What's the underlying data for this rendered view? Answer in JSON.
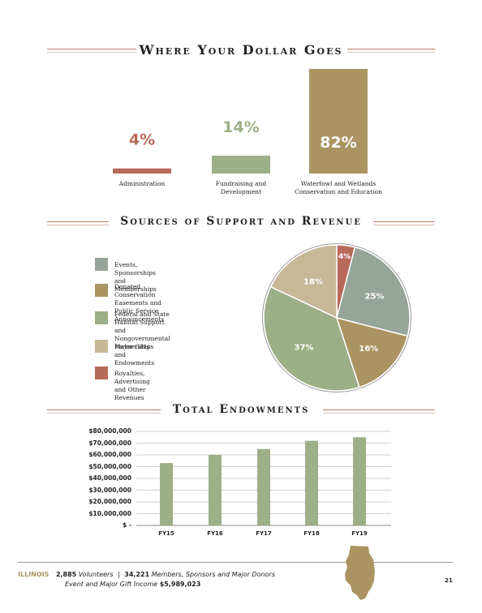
{
  "dollar_section": {
    "title": "Where Your Dollar Goes"
  },
  "support_section": {
    "title": "Sources of Support and Revenue"
  },
  "endowment_section": {
    "title": "Total Endowments"
  },
  "chart_data": [
    {
      "type": "bar",
      "title": "Where Your Dollar Goes",
      "categories": [
        "Administration",
        "Fundraising and Development",
        "Waterfowl and Wetlands Conservation and Education"
      ],
      "category_lines": [
        [
          "Administration"
        ],
        [
          "Fundraising and",
          "Development"
        ],
        [
          "Waterfowl and Wetlands",
          "Conservation and Education"
        ]
      ],
      "values": [
        4,
        14,
        82
      ],
      "value_labels": [
        "4%",
        "14%",
        "82%"
      ],
      "colors": [
        "#b86a5a",
        "#9daf86",
        "#ab9462"
      ],
      "ylim": [
        0,
        82
      ]
    },
    {
      "type": "pie",
      "title": "Sources of Support and Revenue",
      "slices": [
        {
          "label": "Royalties, Advertising and Other Revenues",
          "value": 4,
          "value_label": "4%",
          "color": "#b86a5a"
        },
        {
          "label": "Events, Sponsorships and Memberships",
          "value": 25,
          "value_label": "25%",
          "color": "#97a49a"
        },
        {
          "label": "Donated Conservation Easements and Public Service Announcements",
          "value": 16,
          "value_label": "16%",
          "color": "#ab9462"
        },
        {
          "label": "Federal and State Habitat Support and Nongovernmental Partnerships",
          "value": 37,
          "value_label": "37%",
          "color": "#9daf86"
        },
        {
          "label": "Major Gifts and Endowments",
          "value": 18,
          "value_label": "18%",
          "color": "#c7b897"
        }
      ],
      "legend": [
        {
          "lines": [
            "Events, Sponsorships and Memberships"
          ],
          "color": "#97a49a"
        },
        {
          "lines": [
            "Donated Conservation Easements and",
            "Public Service Announcements"
          ],
          "color": "#ab9462"
        },
        {
          "lines": [
            "Federal and State Habitat Support and",
            "Nongovernmental Partnerships"
          ],
          "color": "#9daf86"
        },
        {
          "lines": [
            "Major Gifts and Endowments"
          ],
          "color": "#c7b897"
        },
        {
          "lines": [
            "Royalties, Advertising and Other Revenues"
          ],
          "color": "#b86a5a"
        }
      ],
      "legend_placement": "left"
    },
    {
      "type": "bar",
      "title": "Total Endowments",
      "categories": [
        "FY15",
        "FY16",
        "FY17",
        "FY18",
        "FY19"
      ],
      "values": [
        53000000,
        60000000,
        65000000,
        72000000,
        75000000
      ],
      "ylim": [
        0,
        80000000
      ],
      "yticks": [
        0,
        10000000,
        20000000,
        30000000,
        40000000,
        50000000,
        60000000,
        70000000,
        80000000
      ],
      "ytick_labels": [
        "$ -",
        "$10,000,000",
        "$20,000,000",
        "$30,000,000",
        "$40,000,000",
        "$50,000,000",
        "$60,000,000",
        "$70,000,000",
        "$80,000,000"
      ],
      "grid": true,
      "color": "#9daf86"
    }
  ],
  "footer": {
    "state": "ILLINOIS",
    "volunteers_count": "2,885",
    "volunteers_label": "Volunteers",
    "separator": "|",
    "members_count": "34,221",
    "members_label": "Members, Sponsors and Major Donors",
    "income_label": "Event and Major Gift Income",
    "income_value": "$5,989,023",
    "page_number": "21",
    "state_shape_color": "#ab9462"
  }
}
